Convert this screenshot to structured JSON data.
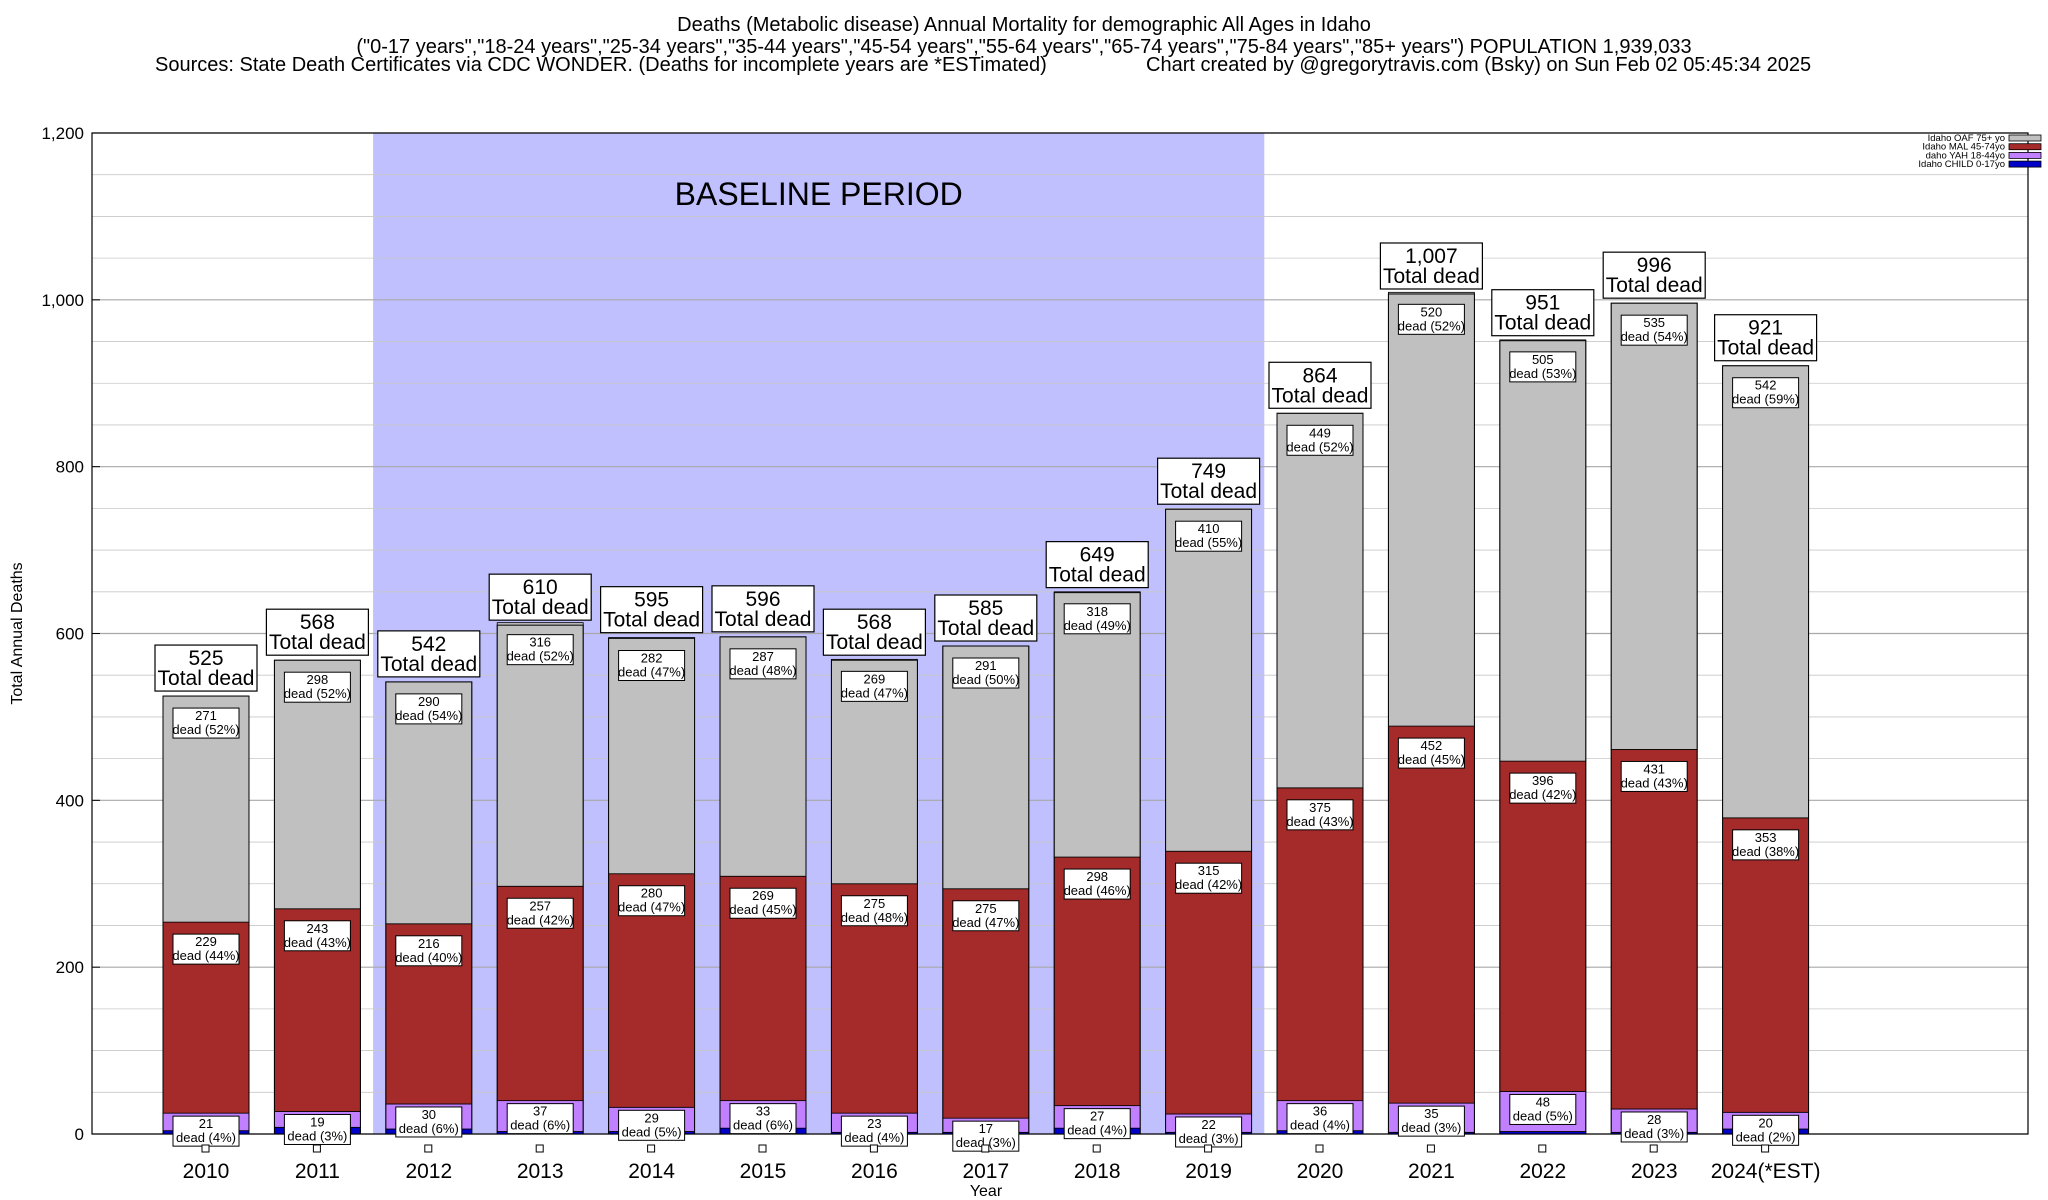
{
  "header": {
    "title_line1": "Deaths (Metabolic disease) Annual Mortality for demographic All Ages in Idaho",
    "title_line2": "(\"0-17 years\",\"18-24 years\",\"25-34 years\",\"35-44 years\",\"45-54 years\",\"55-64 years\",\"65-74 years\",\"75-84 years\",\"85+ years\") POPULATION 1,939,033",
    "sources_left": "Sources: State Death Certificates via CDC WONDER. (Deaths for incomplete years are *ESTimated)",
    "sources_right": "Chart created by @gregorytravis.com (Bsky) on Sun Feb 02 05:45:34 2025"
  },
  "chart_data": {
    "type": "bar",
    "stacked": true,
    "title": "Deaths (Metabolic disease) Annual Mortality for demographic All Ages in Idaho",
    "xlabel": "Year",
    "ylabel": "Total Annual Deaths",
    "ylim": [
      0,
      1200
    ],
    "yticks": [
      0,
      200,
      400,
      600,
      800,
      1000,
      1200
    ],
    "ytick_labels": [
      "0",
      "200",
      "400",
      "600",
      "800",
      "1,000",
      "1,200"
    ],
    "grid": true,
    "legend_position": "top-right",
    "categories": [
      "2010",
      "2011",
      "2012",
      "2013",
      "2014",
      "2015",
      "2016",
      "2017",
      "2018",
      "2019",
      "2020",
      "2021",
      "2022",
      "2023",
      "2024(*EST)"
    ],
    "series": [
      {
        "name": "Idaho CHILD 0-17yo",
        "color": "#0000c8",
        "values": [
          4,
          8,
          6,
          3,
          3,
          7,
          2,
          2,
          7,
          2,
          4,
          2,
          3,
          2,
          6
        ]
      },
      {
        "name": "daho YAH 18-44yo",
        "color": "#c080ff",
        "values": [
          21,
          19,
          30,
          37,
          29,
          33,
          23,
          17,
          27,
          22,
          36,
          35,
          48,
          28,
          20
        ],
        "labels": [
          "dead (4%)",
          "dead (3%)",
          "dead (6%)",
          "dead (6%)",
          "dead (5%)",
          "dead (6%)",
          "dead (4%)",
          "dead (3%)",
          "dead (4%)",
          "dead (3%)",
          "dead (4%)",
          "dead (3%)",
          "dead (5%)",
          "dead (3%)",
          "dead (2%)"
        ]
      },
      {
        "name": "Idaho MAL 45-74yo",
        "color": "#a52a2a",
        "values": [
          229,
          243,
          216,
          257,
          280,
          269,
          275,
          275,
          298,
          315,
          375,
          452,
          396,
          431,
          353
        ],
        "labels": [
          "dead (44%)",
          "dead (43%)",
          "dead (40%)",
          "dead (42%)",
          "dead (47%)",
          "dead (45%)",
          "dead (48%)",
          "dead (47%)",
          "dead (46%)",
          "dead (42%)",
          "dead (43%)",
          "dead (45%)",
          "dead (42%)",
          "dead (43%)",
          "dead (38%)"
        ]
      },
      {
        "name": "Idaho OAF 75+ yo",
        "color": "#c0c0c0",
        "values": [
          271,
          298,
          290,
          316,
          282,
          287,
          269,
          291,
          318,
          410,
          449,
          520,
          505,
          535,
          542
        ],
        "labels": [
          "dead (52%)",
          "dead (52%)",
          "dead (54%)",
          "dead (52%)",
          "dead (47%)",
          "dead (48%)",
          "dead (47%)",
          "dead (50%)",
          "dead (49%)",
          "dead (55%)",
          "dead (52%)",
          "dead (52%)",
          "dead (53%)",
          "dead (54%)",
          "dead (59%)"
        ]
      }
    ],
    "totals": [
      525,
      568,
      542,
      610,
      595,
      596,
      568,
      585,
      649,
      749,
      864,
      1007,
      951,
      996,
      921
    ],
    "total_labels": [
      "525",
      "568",
      "542",
      "610",
      "595",
      "596",
      "568",
      "585",
      "649",
      "749",
      "864",
      "1,007",
      "951",
      "996",
      "921"
    ],
    "total_suffix": "Total dead",
    "annotations": [
      {
        "text": "BASELINE PERIOD",
        "from_category": "2012",
        "to_category": "2019",
        "color": "#c0c0ff"
      }
    ]
  }
}
